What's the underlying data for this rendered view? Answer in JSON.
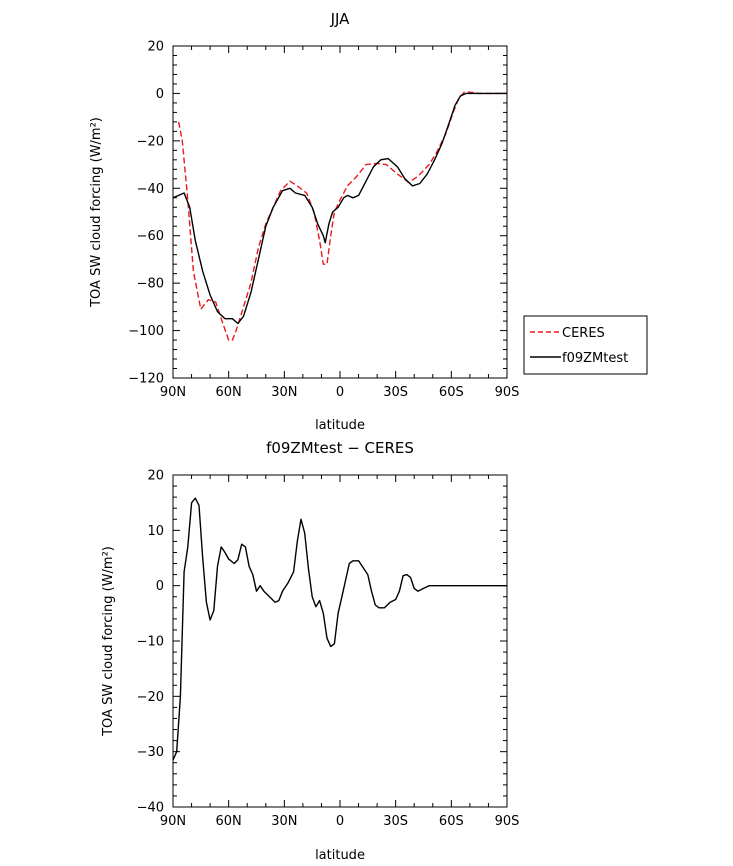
{
  "chart_data": [
    {
      "type": "line",
      "title": "JJA",
      "xlabel": "latitude",
      "ylabel": "TOA SW cloud forcing (W/m²)",
      "xlim": [
        90,
        -90
      ],
      "ylim": [
        -120,
        20
      ],
      "xticks": [
        90,
        60,
        30,
        0,
        -30,
        -60,
        -90
      ],
      "xtick_labels": [
        "90N",
        "60N",
        "30N",
        "0",
        "30S",
        "60S",
        "90S"
      ],
      "yticks": [
        -120,
        -100,
        -80,
        -60,
        -40,
        -20,
        0,
        20
      ],
      "ytick_labels": [
        "−120",
        "−100",
        "−80",
        "−60",
        "−40",
        "−20",
        "0",
        "20"
      ],
      "legend": "right",
      "series": [
        {
          "name": "CERES",
          "color": "#e8191c",
          "dash": "dashed",
          "points": [
            [
              87,
              -12
            ],
            [
              85,
              -20
            ],
            [
              82,
              -45
            ],
            [
              79,
              -75
            ],
            [
              75,
              -91
            ],
            [
              71,
              -87
            ],
            [
              67,
              -88
            ],
            [
              64,
              -95
            ],
            [
              60,
              -104
            ],
            [
              58,
              -104
            ],
            [
              56,
              -100
            ],
            [
              52,
              -90
            ],
            [
              48,
              -80
            ],
            [
              44,
              -65
            ],
            [
              40,
              -55
            ],
            [
              36,
              -48
            ],
            [
              32,
              -41
            ],
            [
              27,
              -37
            ],
            [
              23,
              -39
            ],
            [
              18,
              -42
            ],
            [
              14,
              -50
            ],
            [
              11,
              -62
            ],
            [
              9,
              -72
            ],
            [
              7,
              -72
            ],
            [
              5,
              -60
            ],
            [
              3,
              -50
            ],
            [
              0,
              -45
            ],
            [
              -4,
              -39
            ],
            [
              -9,
              -35
            ],
            [
              -14,
              -30
            ],
            [
              -20,
              -29.5
            ],
            [
              -25,
              -30
            ],
            [
              -31,
              -34
            ],
            [
              -37,
              -37.5
            ],
            [
              -42,
              -35
            ],
            [
              -48,
              -30
            ],
            [
              -52,
              -25
            ],
            [
              -57,
              -17
            ],
            [
              -61,
              -8
            ],
            [
              -64,
              -2
            ],
            [
              -67,
              0.5
            ],
            [
              -70,
              0.5
            ],
            [
              -75,
              0
            ],
            [
              -90,
              0
            ]
          ]
        },
        {
          "name": "f09ZMtest",
          "color": "#000000",
          "dash": "solid",
          "points": [
            [
              90,
              -44
            ],
            [
              87,
              -43
            ],
            [
              84,
              -42
            ],
            [
              81,
              -48
            ],
            [
              78,
              -62
            ],
            [
              74,
              -75
            ],
            [
              70,
              -85
            ],
            [
              66,
              -92
            ],
            [
              62,
              -95
            ],
            [
              58,
              -95
            ],
            [
              55,
              -97
            ],
            [
              52,
              -94
            ],
            [
              48,
              -84
            ],
            [
              44,
              -70
            ],
            [
              40,
              -56
            ],
            [
              36,
              -48
            ],
            [
              31,
              -41
            ],
            [
              27,
              -40
            ],
            [
              24,
              -42
            ],
            [
              19,
              -43
            ],
            [
              15,
              -48
            ],
            [
              12,
              -55
            ],
            [
              9,
              -60
            ],
            [
              8,
              -63
            ],
            [
              6,
              -55
            ],
            [
              4,
              -50
            ],
            [
              1,
              -48
            ],
            [
              -2,
              -44
            ],
            [
              -4,
              -43
            ],
            [
              -7,
              -44
            ],
            [
              -10,
              -43
            ],
            [
              -14,
              -37
            ],
            [
              -18,
              -31
            ],
            [
              -22,
              -28
            ],
            [
              -26,
              -27.5
            ],
            [
              -31,
              -31
            ],
            [
              -35,
              -36
            ],
            [
              -39,
              -39
            ],
            [
              -43,
              -38
            ],
            [
              -47,
              -34
            ],
            [
              -51,
              -28
            ],
            [
              -55,
              -21
            ],
            [
              -59,
              -12
            ],
            [
              -62,
              -5
            ],
            [
              -65,
              -1
            ],
            [
              -68,
              0
            ],
            [
              -72,
              0
            ],
            [
              -80,
              0
            ],
            [
              -90,
              0
            ]
          ]
        }
      ]
    },
    {
      "type": "line",
      "title": "f09ZMtest − CERES",
      "xlabel": "latitude",
      "ylabel": "TOA SW cloud forcing (W/m²)",
      "xlim": [
        90,
        -90
      ],
      "ylim": [
        -40,
        20
      ],
      "xticks": [
        90,
        60,
        30,
        0,
        -30,
        -60,
        -90
      ],
      "xtick_labels": [
        "90N",
        "60N",
        "30N",
        "0",
        "30S",
        "60S",
        "90S"
      ],
      "yticks": [
        -40,
        -30,
        -20,
        -10,
        0,
        10,
        20
      ],
      "ytick_labels": [
        "−40",
        "−30",
        "−20",
        "−10",
        "0",
        "10",
        "20"
      ],
      "series": [
        {
          "color": "#000000",
          "dash": "solid",
          "points": [
            [
              90,
              -31.5
            ],
            [
              88,
              -30
            ],
            [
              86,
              -20
            ],
            [
              84,
              2.5
            ],
            [
              82,
              7
            ],
            [
              80,
              15
            ],
            [
              78,
              15.8
            ],
            [
              76,
              14.5
            ],
            [
              74,
              5
            ],
            [
              72,
              -3
            ],
            [
              70,
              -6.2
            ],
            [
              68,
              -4.5
            ],
            [
              66,
              3.5
            ],
            [
              64,
              7
            ],
            [
              62,
              6
            ],
            [
              60,
              4.8
            ],
            [
              57,
              4
            ],
            [
              55,
              4.7
            ],
            [
              53,
              7.5
            ],
            [
              51,
              7
            ],
            [
              49,
              3.5
            ],
            [
              47,
              2
            ],
            [
              45,
              -1
            ],
            [
              43,
              0
            ],
            [
              41,
              -1
            ],
            [
              38,
              -2
            ],
            [
              35,
              -3
            ],
            [
              33,
              -2.7
            ],
            [
              31,
              -1
            ],
            [
              28,
              0.5
            ],
            [
              25,
              2.5
            ],
            [
              23,
              8
            ],
            [
              21,
              12
            ],
            [
              19,
              9.5
            ],
            [
              17,
              3
            ],
            [
              15,
              -2
            ],
            [
              13,
              -3.8
            ],
            [
              11,
              -2.7
            ],
            [
              9,
              -5
            ],
            [
              7,
              -9.5
            ],
            [
              5,
              -11
            ],
            [
              3,
              -10.5
            ],
            [
              1,
              -5
            ],
            [
              -1,
              -2
            ],
            [
              -3,
              1
            ],
            [
              -5,
              4
            ],
            [
              -7,
              4.5
            ],
            [
              -10,
              4.5
            ],
            [
              -13,
              3
            ],
            [
              -15,
              2
            ],
            [
              -17,
              -1
            ],
            [
              -19,
              -3.5
            ],
            [
              -21,
              -4
            ],
            [
              -24,
              -4
            ],
            [
              -27,
              -3
            ],
            [
              -30,
              -2.5
            ],
            [
              -32,
              -1
            ],
            [
              -34,
              1.8
            ],
            [
              -36,
              2
            ],
            [
              -38,
              1.5
            ],
            [
              -40,
              -0.5
            ],
            [
              -42,
              -1
            ],
            [
              -45,
              -0.5
            ],
            [
              -48,
              0
            ],
            [
              -52,
              0
            ],
            [
              -90,
              0
            ]
          ]
        }
      ]
    }
  ]
}
